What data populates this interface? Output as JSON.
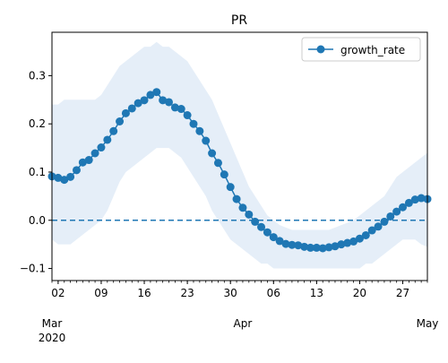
{
  "chart_data": {
    "type": "line",
    "title": "PR",
    "xlabel": "",
    "ylabel": "",
    "x_start": "2020-03-01",
    "x_end": "2020-05-01",
    "ylim": [
      -0.125,
      0.39
    ],
    "y_ticks": [
      -0.1,
      0.0,
      0.1,
      0.2,
      0.3
    ],
    "y_tick_labels": [
      "−0.1",
      "0.0",
      "0.1",
      "0.2",
      "0.3"
    ],
    "x_ticks": [
      {
        "date": "2020-03-02",
        "label": "02"
      },
      {
        "date": "2020-03-09",
        "label": "09"
      },
      {
        "date": "2020-03-16",
        "label": "16"
      },
      {
        "date": "2020-03-23",
        "label": "23"
      },
      {
        "date": "2020-03-30",
        "label": "30"
      },
      {
        "date": "2020-04-06",
        "label": "06"
      },
      {
        "date": "2020-04-13",
        "label": "13"
      },
      {
        "date": "2020-04-20",
        "label": "20"
      },
      {
        "date": "2020-04-27",
        "label": "27"
      }
    ],
    "x_major_labels": [
      {
        "date": "2020-03-01",
        "label": "Mar",
        "sublabel": "2020"
      },
      {
        "date": "2020-04-01",
        "label": "Apr",
        "sublabel": ""
      },
      {
        "date": "2020-05-01",
        "label": "May",
        "sublabel": ""
      }
    ],
    "grid": false,
    "legend": {
      "position": "top-right",
      "entries": [
        "growth_rate"
      ]
    },
    "reference_line": {
      "y": 0.0,
      "style": "dashed"
    },
    "series": [
      {
        "name": "growth_rate",
        "color": "#1f77b4",
        "marker": "circle",
        "x": [
          "2020-03-01",
          "2020-03-02",
          "2020-03-03",
          "2020-03-04",
          "2020-03-05",
          "2020-03-06",
          "2020-03-07",
          "2020-03-08",
          "2020-03-09",
          "2020-03-10",
          "2020-03-11",
          "2020-03-12",
          "2020-03-13",
          "2020-03-14",
          "2020-03-15",
          "2020-03-16",
          "2020-03-17",
          "2020-03-18",
          "2020-03-19",
          "2020-03-20",
          "2020-03-21",
          "2020-03-22",
          "2020-03-23",
          "2020-03-24",
          "2020-03-25",
          "2020-03-26",
          "2020-03-27",
          "2020-03-28",
          "2020-03-29",
          "2020-03-30",
          "2020-03-31",
          "2020-04-01",
          "2020-04-02",
          "2020-04-03",
          "2020-04-04",
          "2020-04-05",
          "2020-04-06",
          "2020-04-07",
          "2020-04-08",
          "2020-04-09",
          "2020-04-10",
          "2020-04-11",
          "2020-04-12",
          "2020-04-13",
          "2020-04-14",
          "2020-04-15",
          "2020-04-16",
          "2020-04-17",
          "2020-04-18",
          "2020-04-19",
          "2020-04-20",
          "2020-04-21",
          "2020-04-22",
          "2020-04-23",
          "2020-04-24",
          "2020-04-25",
          "2020-04-26",
          "2020-04-27",
          "2020-04-28",
          "2020-04-29",
          "2020-04-30",
          "2020-05-01"
        ],
        "values": [
          0.091,
          0.088,
          0.084,
          0.09,
          0.104,
          0.12,
          0.125,
          0.139,
          0.151,
          0.167,
          0.185,
          0.205,
          0.222,
          0.232,
          0.243,
          0.249,
          0.26,
          0.266,
          0.249,
          0.245,
          0.234,
          0.231,
          0.218,
          0.2,
          0.185,
          0.165,
          0.139,
          0.119,
          0.095,
          0.069,
          0.044,
          0.026,
          0.012,
          -0.003,
          -0.014,
          -0.025,
          -0.035,
          -0.043,
          -0.049,
          -0.051,
          -0.052,
          -0.055,
          -0.057,
          -0.057,
          -0.058,
          -0.056,
          -0.054,
          -0.05,
          -0.047,
          -0.044,
          -0.038,
          -0.031,
          -0.021,
          -0.013,
          -0.003,
          0.008,
          0.018,
          0.027,
          0.036,
          0.043,
          0.046,
          0.044
        ],
        "band_upper": [
          0.24,
          0.24,
          0.25,
          0.25,
          0.25,
          0.25,
          0.25,
          0.25,
          0.26,
          0.28,
          0.3,
          0.32,
          0.33,
          0.34,
          0.35,
          0.36,
          0.36,
          0.37,
          0.36,
          0.36,
          0.35,
          0.34,
          0.33,
          0.31,
          0.29,
          0.27,
          0.25,
          0.22,
          0.19,
          0.16,
          0.13,
          0.1,
          0.07,
          0.05,
          0.03,
          0.01,
          0.0,
          -0.01,
          -0.015,
          -0.02,
          -0.02,
          -0.02,
          -0.02,
          -0.02,
          -0.02,
          -0.02,
          -0.015,
          -0.01,
          -0.005,
          0.0,
          0.01,
          0.02,
          0.03,
          0.04,
          0.05,
          0.07,
          0.09,
          0.1,
          0.11,
          0.12,
          0.13,
          0.14
        ],
        "band_lower": [
          -0.04,
          -0.05,
          -0.05,
          -0.05,
          -0.04,
          -0.03,
          -0.02,
          -0.01,
          0.0,
          0.02,
          0.05,
          0.08,
          0.1,
          0.11,
          0.12,
          0.13,
          0.14,
          0.15,
          0.15,
          0.15,
          0.14,
          0.13,
          0.11,
          0.09,
          0.07,
          0.05,
          0.02,
          0.0,
          -0.02,
          -0.04,
          -0.05,
          -0.06,
          -0.07,
          -0.08,
          -0.09,
          -0.09,
          -0.1,
          -0.1,
          -0.1,
          -0.1,
          -0.1,
          -0.1,
          -0.1,
          -0.1,
          -0.1,
          -0.1,
          -0.1,
          -0.1,
          -0.1,
          -0.1,
          -0.1,
          -0.09,
          -0.09,
          -0.08,
          -0.07,
          -0.06,
          -0.05,
          -0.04,
          -0.04,
          -0.04,
          -0.05,
          -0.055
        ],
        "band_color": "#cfe0f2"
      }
    ]
  }
}
